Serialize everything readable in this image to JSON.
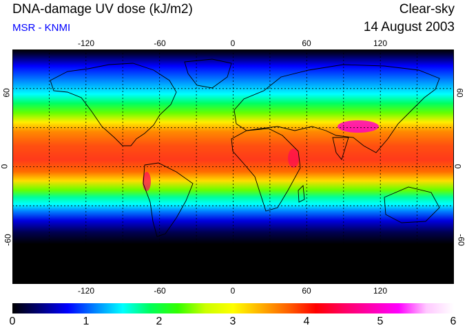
{
  "header": {
    "title": "DNA-damage UV dose (kJ/m2)",
    "subtitle": "MSR - KNMI",
    "condition": "Clear-sky",
    "date": "14 August 2003"
  },
  "colors": {
    "subtitle": "#0000ff",
    "scale": [
      "#000000",
      "#00007a",
      "#0000ff",
      "#0084ff",
      "#00ffff",
      "#00ff5a",
      "#33ff00",
      "#ccff00",
      "#ffff00",
      "#ffb000",
      "#ff6000",
      "#ff0000",
      "#ff0060",
      "#ff00b0",
      "#ff00ff",
      "#ffc8ff",
      "#ffffff"
    ]
  },
  "map": {
    "projection": "equirectangular",
    "lon_range": [
      -180,
      180
    ],
    "lat_range": [
      -90,
      90
    ],
    "grid": "dashed, every 30 degrees",
    "lon_ticks": [
      {
        "value": -120,
        "label": "-120"
      },
      {
        "value": -60,
        "label": "-60"
      },
      {
        "value": 0,
        "label": "0"
      },
      {
        "value": 60,
        "label": "60"
      },
      {
        "value": 120,
        "label": "120"
      }
    ],
    "lat_ticks": [
      {
        "value": 60,
        "label": "60"
      },
      {
        "value": 0,
        "label": "0"
      },
      {
        "value": -60,
        "label": "-60"
      }
    ]
  },
  "colorbar": {
    "min": 0,
    "max": 6,
    "labels": [
      "0",
      "1",
      "2",
      "3",
      "4",
      "5",
      "6"
    ]
  }
}
